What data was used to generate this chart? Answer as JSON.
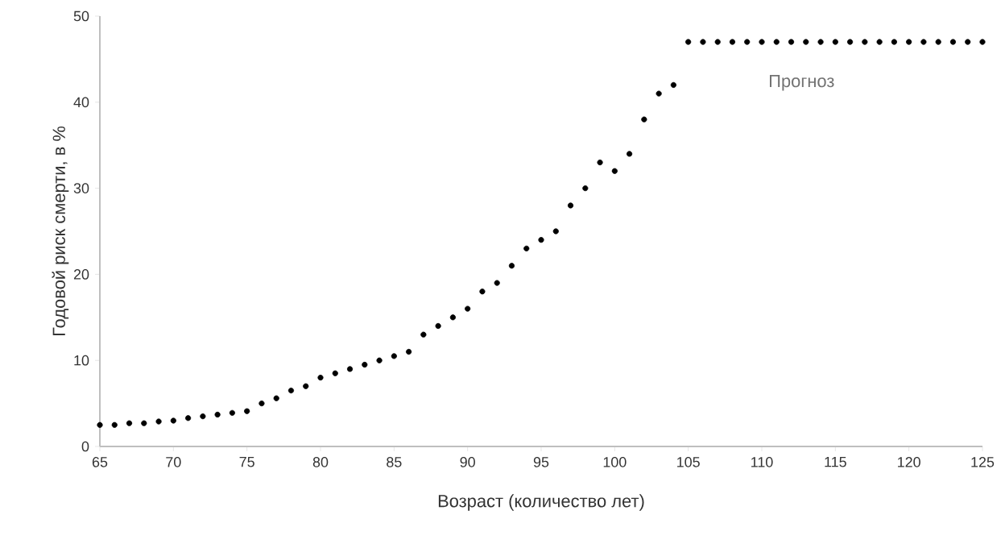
{
  "chart_data": {
    "type": "scatter",
    "xlabel": "Возраст (количество лет)",
    "ylabel": "Годовой риск смерти, в %",
    "annotations": [
      "Прогноз"
    ],
    "x": [
      65,
      66,
      67,
      68,
      69,
      70,
      71,
      72,
      73,
      74,
      75,
      76,
      77,
      78,
      79,
      80,
      81,
      82,
      83,
      84,
      85,
      86,
      87,
      88,
      89,
      90,
      91,
      92,
      93,
      94,
      95,
      96,
      97,
      98,
      99,
      100,
      101,
      102,
      103,
      104,
      105,
      106,
      107,
      108,
      109,
      110,
      111,
      112,
      113,
      114,
      115,
      116,
      117,
      118,
      119,
      120,
      121,
      122,
      123,
      124,
      125
    ],
    "series": [
      {
        "color": "#000000",
        "values": [
          2.5,
          2.5,
          2.7,
          2.7,
          2.9,
          3.0,
          3.3,
          3.5,
          3.7,
          3.9,
          4.1,
          5,
          5.6,
          6.5,
          7,
          8,
          8.5,
          9,
          9.5,
          10,
          10.5,
          11,
          13,
          14,
          15,
          16,
          18,
          19,
          21,
          23,
          24,
          25,
          28,
          30,
          33,
          32,
          34,
          38,
          41,
          42,
          47,
          47,
          47,
          47,
          47,
          47,
          47,
          47,
          47,
          47,
          47,
          47,
          47,
          47,
          47,
          47,
          47,
          47,
          47,
          47,
          47
        ]
      }
    ],
    "xlim": [
      65,
      125
    ],
    "ylim": [
      0,
      50
    ],
    "xticks": [
      65,
      70,
      75,
      80,
      85,
      90,
      95,
      100,
      105,
      110,
      115,
      120,
      125
    ],
    "yticks": [
      0,
      10,
      20,
      30,
      40,
      50
    ],
    "marker": "circle",
    "grid": false
  }
}
